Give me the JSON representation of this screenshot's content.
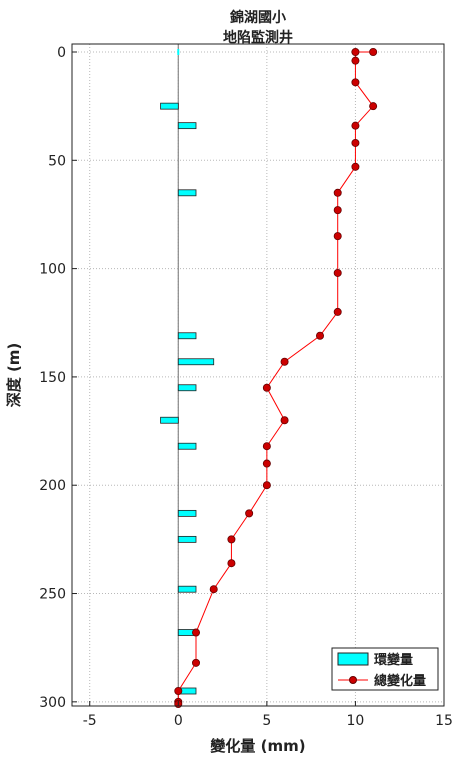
{
  "chart_data": {
    "type": "bar",
    "title_lines": [
      "錦湖國小",
      "地陷監測井"
    ],
    "xlabel": "變化量 (mm)",
    "ylabel": "深度 (m)",
    "xlim": [
      -6,
      15
    ],
    "ylim": [
      0,
      300
    ],
    "y_reversed": true,
    "x_ticks": [
      -5,
      0,
      5,
      10,
      15
    ],
    "y_ticks": [
      0,
      50,
      100,
      150,
      200,
      250,
      300
    ],
    "grid": true,
    "legend_position": "bottom-right",
    "colors": {
      "bar": "#00ffff",
      "line": "#ff0000",
      "marker": "#cc0000"
    },
    "series": [
      {
        "name": "環變量",
        "type": "barh",
        "points": [
          {
            "depth": 25,
            "value": -1
          },
          {
            "depth": 34,
            "value": 1
          },
          {
            "depth": 65,
            "value": 1
          },
          {
            "depth": 131,
            "value": 1
          },
          {
            "depth": 143,
            "value": 2
          },
          {
            "depth": 155,
            "value": 1
          },
          {
            "depth": 170,
            "value": -1
          },
          {
            "depth": 182,
            "value": 1
          },
          {
            "depth": 213,
            "value": 1
          },
          {
            "depth": 225,
            "value": 1
          },
          {
            "depth": 248,
            "value": 1
          },
          {
            "depth": 268,
            "value": 1
          },
          {
            "depth": 295,
            "value": 1
          }
        ]
      },
      {
        "name": "總變化量",
        "type": "line",
        "points": [
          {
            "depth": 0,
            "value": 11
          },
          {
            "depth": 0,
            "value": 10
          },
          {
            "depth": 4,
            "value": 10
          },
          {
            "depth": 14,
            "value": 10
          },
          {
            "depth": 25,
            "value": 11
          },
          {
            "depth": 34,
            "value": 10
          },
          {
            "depth": 42,
            "value": 10
          },
          {
            "depth": 53,
            "value": 10
          },
          {
            "depth": 65,
            "value": 9
          },
          {
            "depth": 73,
            "value": 9
          },
          {
            "depth": 85,
            "value": 9
          },
          {
            "depth": 102,
            "value": 9
          },
          {
            "depth": 120,
            "value": 9
          },
          {
            "depth": 131,
            "value": 8
          },
          {
            "depth": 143,
            "value": 6
          },
          {
            "depth": 155,
            "value": 5
          },
          {
            "depth": 170,
            "value": 6
          },
          {
            "depth": 182,
            "value": 5
          },
          {
            "depth": 190,
            "value": 5
          },
          {
            "depth": 200,
            "value": 5
          },
          {
            "depth": 213,
            "value": 4
          },
          {
            "depth": 225,
            "value": 3
          },
          {
            "depth": 236,
            "value": 3
          },
          {
            "depth": 248,
            "value": 2
          },
          {
            "depth": 268,
            "value": 1
          },
          {
            "depth": 282,
            "value": 1
          },
          {
            "depth": 295,
            "value": 0
          },
          {
            "depth": 300,
            "value": 0
          },
          {
            "depth": 301,
            "value": 0
          }
        ]
      }
    ]
  }
}
